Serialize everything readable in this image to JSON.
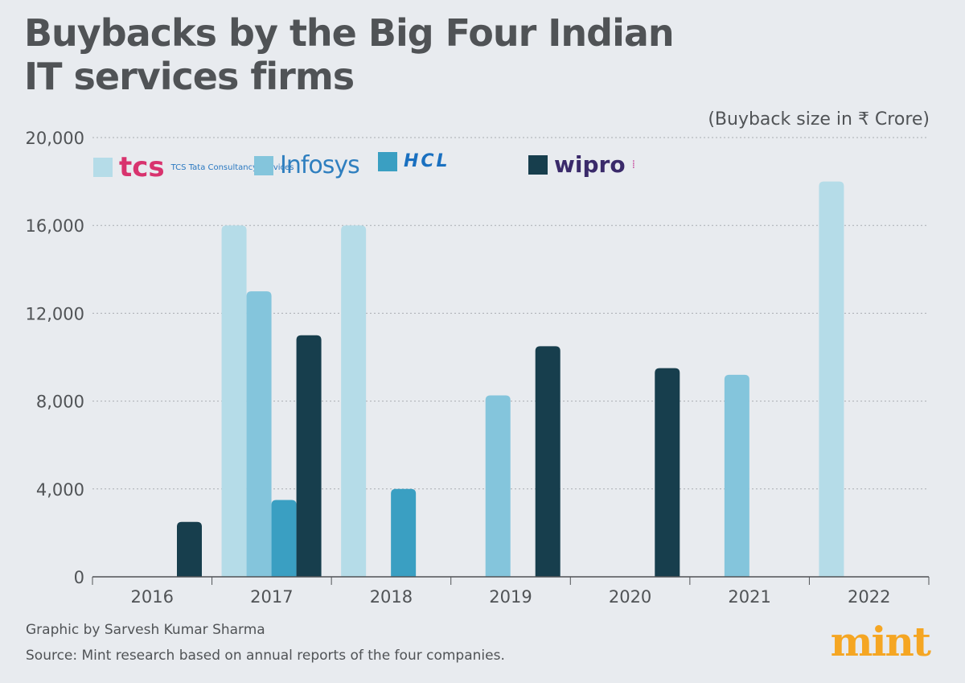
{
  "title": "Buybacks by the Big Four Indian IT services firms",
  "unit_note": "(Buyback size in ₹ Crore)",
  "credit": "Graphic by Sarvesh Kumar Sharma",
  "source": "Source: Mint research based on annual reports of the four companies.",
  "brand": "mint",
  "chart_data": {
    "type": "bar",
    "title": "Buybacks by the Big Four Indian IT services firms",
    "ylabel": "(Buyback size in ₹ Crore)",
    "ylim": [
      0,
      20000
    ],
    "yticks": [
      "0",
      "4,000",
      "8,000",
      "12,000",
      "16,000",
      "20,000"
    ],
    "ytick_values": [
      0,
      4000,
      8000,
      12000,
      16000,
      20000
    ],
    "grid": true,
    "legend": "top-left",
    "categories": [
      "2016",
      "2017",
      "2018",
      "2019",
      "2020",
      "2021",
      "2022"
    ],
    "series": [
      {
        "name": "TCS Tata Consultancy Services",
        "color": "#b5dce8",
        "values": [
          null,
          16000,
          16000,
          null,
          null,
          null,
          18000
        ]
      },
      {
        "name": "Infosys",
        "color": "#84c5dc",
        "values": [
          null,
          13000,
          null,
          8260,
          null,
          9200,
          null
        ]
      },
      {
        "name": "HCL",
        "color": "#3a9fc2",
        "values": [
          null,
          3500,
          4000,
          null,
          null,
          null,
          null
        ]
      },
      {
        "name": "wipro",
        "color": "#173e4d",
        "values": [
          2500,
          11000,
          null,
          10500,
          9500,
          null,
          null
        ]
      }
    ]
  }
}
